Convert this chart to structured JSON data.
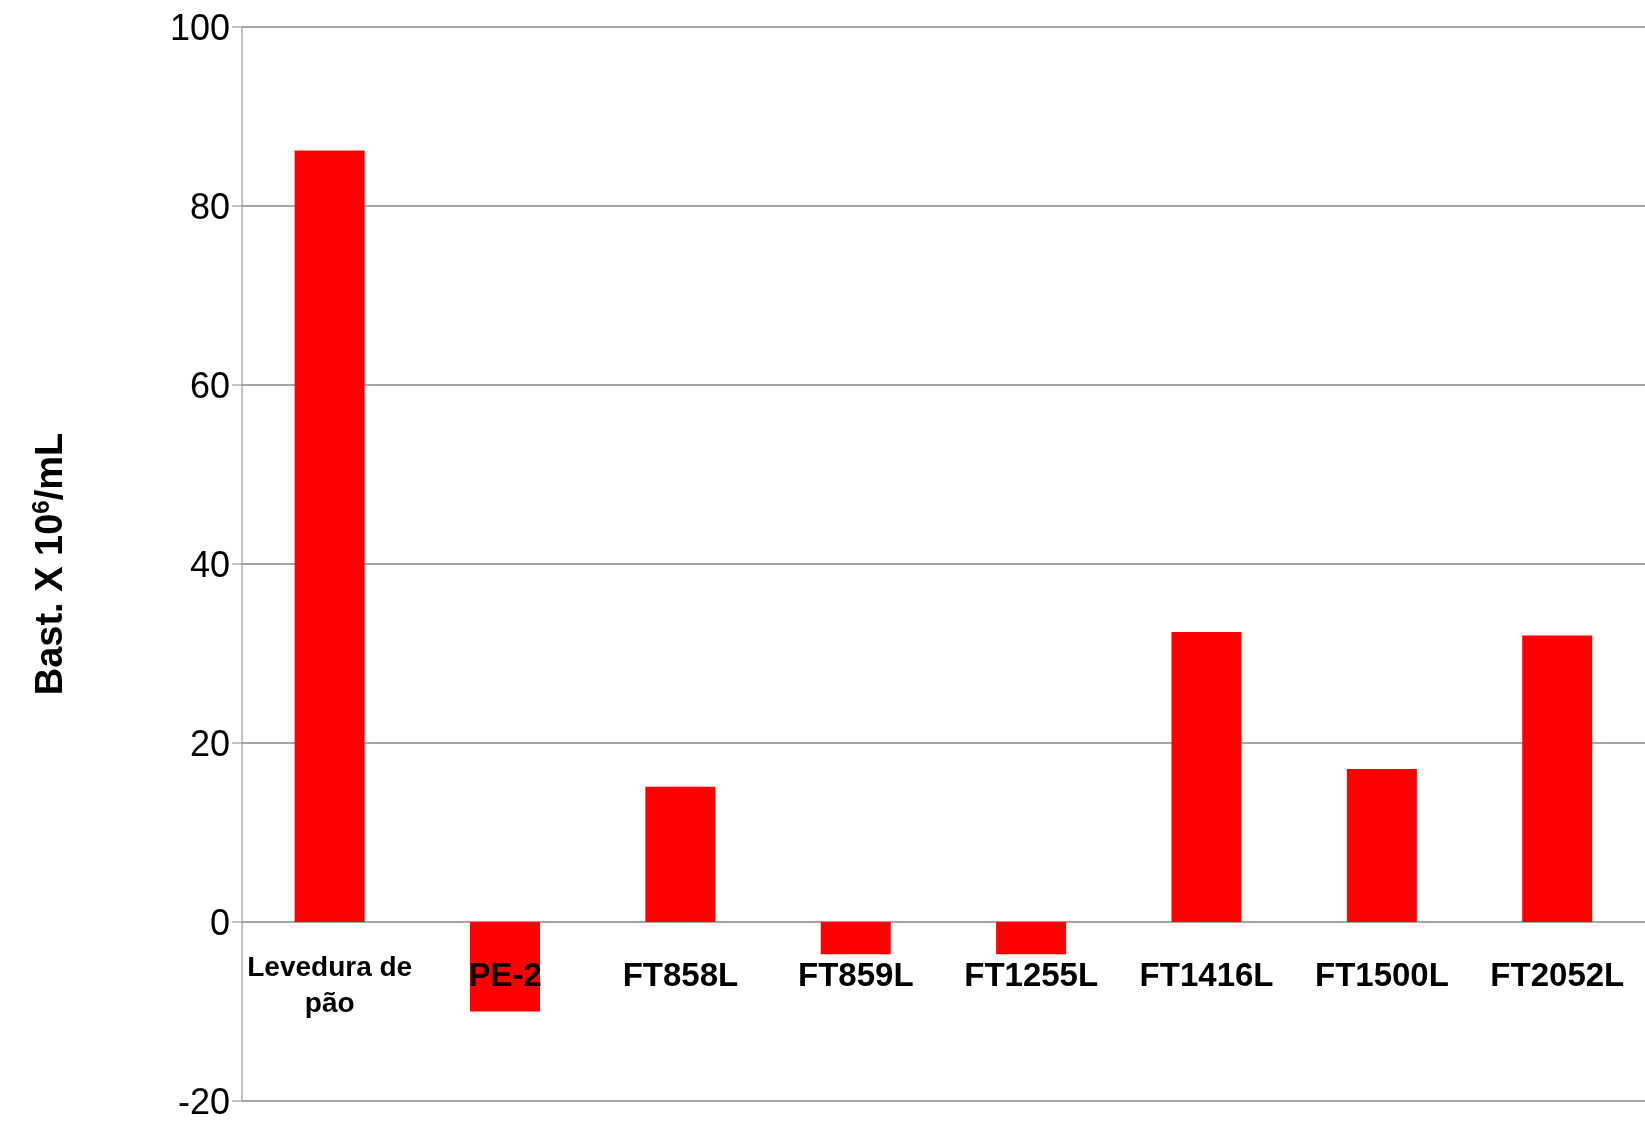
{
  "chart_data": {
    "type": "bar",
    "ylabel": "Bast. X 10$^{6}$/mL",
    "categories": [
      "Levedura de pão",
      "PE-2",
      "FT858L",
      "FT859L",
      "FT1255L",
      "FT1416L",
      "FT1500L",
      "FT2052L"
    ],
    "values": [
      86.2,
      -10.0,
      15.1,
      -3.6,
      -3.6,
      32.4,
      17.1,
      32.0
    ],
    "color": "#ff0000",
    "ylim": [
      -20,
      100
    ],
    "yticks": [
      -20,
      0,
      20,
      40,
      60,
      80,
      100
    ],
    "grid": "y"
  }
}
